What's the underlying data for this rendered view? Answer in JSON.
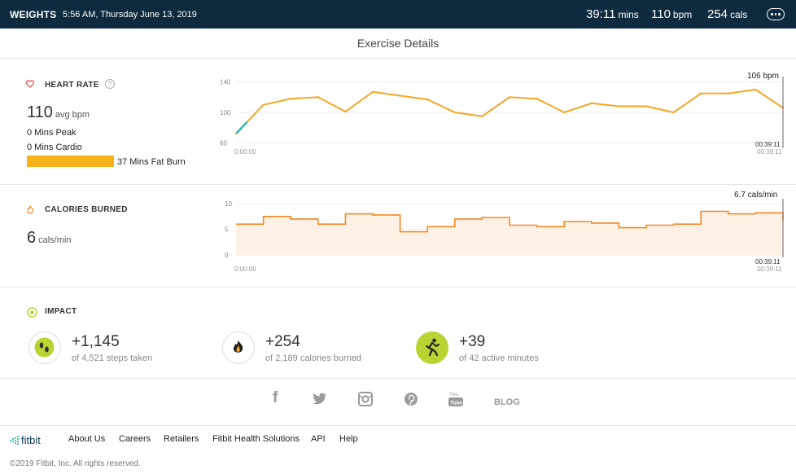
{
  "header": {
    "activity": "WEIGHTS",
    "datetime": "5:56 AM, Thursday June 13, 2019",
    "duration_value": "39:11",
    "duration_unit": "mins",
    "bpm_value": "110",
    "bpm_unit": "bpm",
    "cals_value": "254",
    "cals_unit": "cals",
    "menu_icon": "more-dots-icon"
  },
  "page_title": "Exercise Details",
  "heart_rate": {
    "label": "HEART RATE",
    "help": "?",
    "avg_value": "110",
    "avg_unit": "avg bpm",
    "peak": "0 Mins Peak",
    "cardio": "0 Mins Cardio",
    "fat_burn": "37 Mins Fat Burn",
    "fat_burn_color": "#f9b21a",
    "readout": "106 bpm",
    "start_time": "0:00:00",
    "end_time": "00:39:11",
    "end_time_gray": "00:39:11"
  },
  "calories": {
    "label": "CALORIES BURNED",
    "value": "6",
    "unit": "cals/min",
    "readout": "6.7 cals/min",
    "start_time": "0:00:00",
    "end_time": "00:39:11",
    "end_time_gray": "00:39:11"
  },
  "impact": {
    "label": "IMPACT",
    "items": [
      {
        "value": "+1,145",
        "sub": "of 4,521 steps taken",
        "icon": "footsteps-icon"
      },
      {
        "value": "+254",
        "sub": "of 2,189 calories burned",
        "icon": "flame-icon"
      },
      {
        "value": "+39",
        "sub": "of 42 active minutes",
        "icon": "runner-icon"
      }
    ]
  },
  "social": {
    "facebook": "f",
    "blog": "BLOG"
  },
  "footer": {
    "logo": "fitbit",
    "links": [
      "About Us",
      "Careers",
      "Retailers",
      "Fitbit Health Solutions",
      "API",
      "Help"
    ],
    "copyright": "©2019 Fitbit, Inc. All rights reserved."
  },
  "chart_data": [
    {
      "type": "line",
      "x": [
        "0:00:00",
        "0:02:00",
        "0:04:00",
        "0:06:00",
        "0:08:00",
        "0:10:00",
        "0:12:00",
        "0:14:00",
        "0:16:00",
        "0:18:00",
        "0:20:00",
        "0:22:00",
        "0:24:00",
        "0:26:00",
        "0:28:00",
        "0:30:00",
        "0:32:00",
        "0:34:00",
        "0:36:00",
        "0:38:00",
        "0:39:11"
      ],
      "series": [
        {
          "values": [
            72,
            110,
            118,
            120,
            101,
            127,
            122,
            117,
            100,
            95,
            120,
            118,
            100,
            112,
            108,
            108,
            100,
            125,
            125,
            130,
            106
          ]
        }
      ],
      "yticks": [
        60,
        100,
        140
      ],
      "ylim": [
        55,
        145
      ],
      "colors": {
        "main": "#f5a623",
        "low": "#2fb6b4"
      }
    },
    {
      "type": "area",
      "x": [
        "0:00:00",
        "0:02:00",
        "0:04:00",
        "0:06:00",
        "0:08:00",
        "0:10:00",
        "0:12:00",
        "0:14:00",
        "0:16:00",
        "0:18:00",
        "0:20:00",
        "0:22:00",
        "0:24:00",
        "0:26:00",
        "0:28:00",
        "0:30:00",
        "0:32:00",
        "0:34:00",
        "0:36:00",
        "0:38:00",
        "0:39:11"
      ],
      "series": [
        {
          "values": [
            6,
            7.5,
            7,
            6,
            8,
            7.8,
            4.5,
            5.5,
            7,
            7.3,
            5.8,
            5.5,
            6.5,
            6.2,
            5.3,
            5.8,
            6,
            8.5,
            8,
            8.2,
            6.7
          ]
        }
      ],
      "yticks": [
        0,
        5,
        10
      ],
      "ylim": [
        0,
        10
      ],
      "colors": {
        "line": "#f08a24",
        "fill": "#fdf0e4"
      }
    }
  ]
}
